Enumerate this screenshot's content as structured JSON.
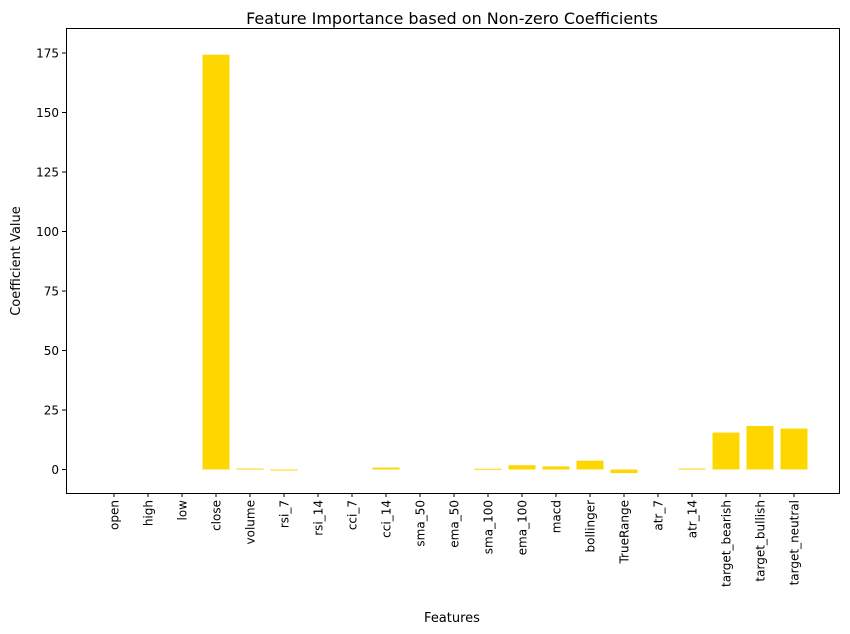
{
  "chart_data": {
    "type": "bar",
    "title": "Feature Importance based on Non-zero Coefficients",
    "xlabel": "Features",
    "ylabel": "Coefficient Value",
    "ylim": [
      -10,
      183
    ],
    "yticks": [
      0,
      25,
      50,
      75,
      100,
      125,
      150,
      175
    ],
    "grid": false,
    "bar_color": "#FFD700",
    "categories": [
      "open",
      "high",
      "low",
      "close",
      "volume",
      "rsi_7",
      "rsi_14",
      "cci_7",
      "cci_14",
      "sma_50",
      "ema_50",
      "sma_100",
      "ema_100",
      "macd",
      "bollinger",
      "TrueRange",
      "atr_7",
      "atr_14",
      "target_bearish",
      "target_bullish",
      "target_neutral"
    ],
    "values": [
      0,
      0,
      0,
      174.3,
      0.4,
      -0.4,
      0,
      0,
      0.8,
      0,
      0,
      0.3,
      1.8,
      1.3,
      3.7,
      -1.5,
      0,
      0.4,
      15.5,
      18.3,
      17.2
    ]
  }
}
